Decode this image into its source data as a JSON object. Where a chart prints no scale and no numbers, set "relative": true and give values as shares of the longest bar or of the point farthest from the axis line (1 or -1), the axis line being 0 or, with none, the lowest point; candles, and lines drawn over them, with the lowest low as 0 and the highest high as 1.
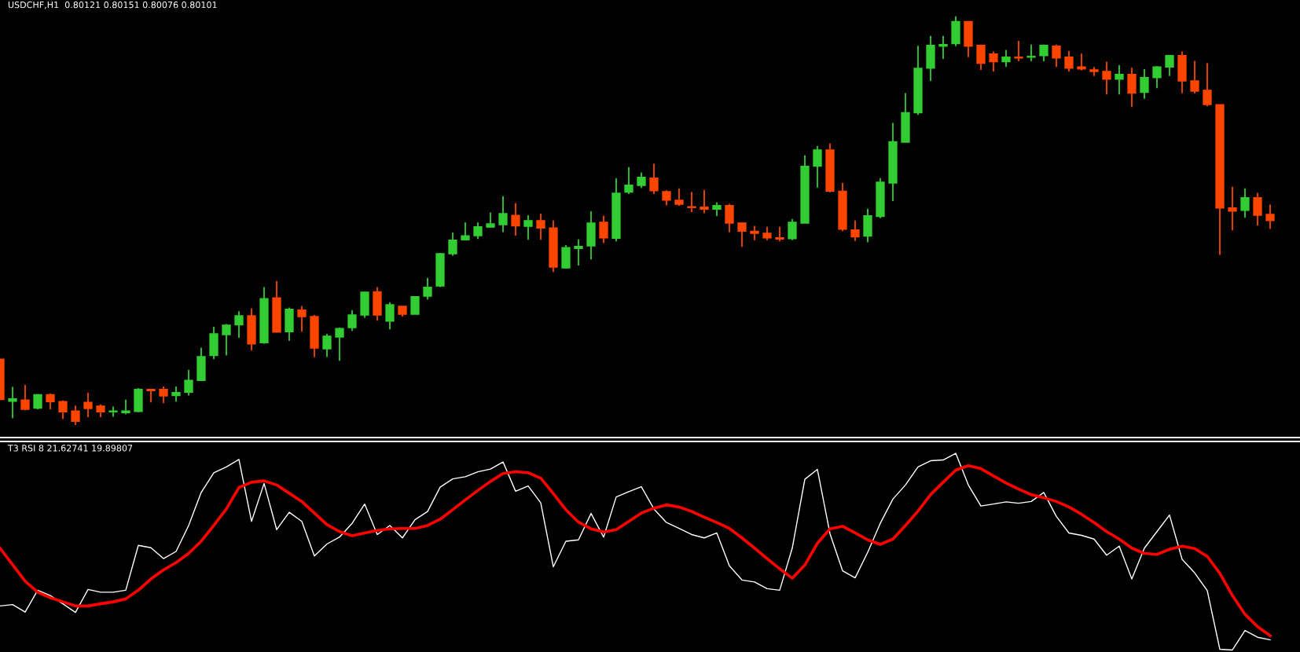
{
  "chart_data": [
    {
      "type": "candlestick",
      "title": "USDCHF,H1  0.80121 0.80151 0.80076 0.80101",
      "relative": true,
      "categories": [
        null,
        null,
        null,
        null,
        null,
        null,
        null,
        null,
        null,
        null,
        null,
        null,
        null,
        null,
        null,
        null,
        null,
        null,
        null,
        null,
        null,
        null,
        null,
        null,
        null,
        null,
        null,
        null,
        null,
        null,
        null,
        null,
        null,
        null,
        null,
        null,
        null,
        null,
        null,
        null,
        null,
        null,
        null,
        null,
        null,
        null,
        null,
        null,
        null,
        null,
        null,
        null,
        null,
        null,
        null,
        null,
        null,
        null,
        null,
        null,
        null,
        null,
        null,
        null,
        null,
        null,
        null,
        null,
        null,
        null,
        null,
        null,
        null,
        null,
        null,
        null,
        null,
        null,
        null,
        null,
        null,
        null,
        null,
        null,
        null,
        null,
        null,
        null,
        null,
        null,
        null,
        null,
        null,
        null,
        null,
        null,
        null,
        null,
        null,
        null,
        null,
        null
      ],
      "ohlc": [
        [
          0.161,
          0.161,
          0.062,
          0.062
        ],
        [
          0.058,
          0.093,
          0.016,
          0.064
        ],
        [
          0.061,
          0.098,
          0.036,
          0.038
        ],
        [
          0.041,
          0.075,
          0.038,
          0.074
        ],
        [
          0.074,
          0.077,
          0.038,
          0.057
        ],
        [
          0.057,
          0.06,
          0.014,
          0.032
        ],
        [
          0.034,
          0.047,
          0.0,
          0.009
        ],
        [
          0.055,
          0.079,
          0.019,
          0.04
        ],
        [
          0.046,
          0.05,
          0.019,
          0.032
        ],
        [
          0.032,
          0.045,
          0.02,
          0.033
        ],
        [
          0.03,
          0.062,
          0.026,
          0.034
        ],
        [
          0.033,
          0.09,
          0.031,
          0.087
        ],
        [
          0.087,
          0.088,
          0.055,
          0.084
        ],
        [
          0.087,
          0.094,
          0.053,
          0.071
        ],
        [
          0.072,
          0.094,
          0.057,
          0.079
        ],
        [
          0.08,
          0.135,
          0.072,
          0.109
        ],
        [
          0.109,
          0.189,
          0.109,
          0.167
        ],
        [
          0.17,
          0.24,
          0.161,
          0.223
        ],
        [
          0.221,
          0.247,
          0.17,
          0.244
        ],
        [
          0.245,
          0.278,
          0.213,
          0.267
        ],
        [
          0.267,
          0.285,
          0.182,
          0.198
        ],
        [
          0.201,
          0.337,
          0.199,
          0.309
        ],
        [
          0.311,
          0.352,
          0.227,
          0.227
        ],
        [
          0.228,
          0.287,
          0.206,
          0.283
        ],
        [
          0.281,
          0.291,
          0.228,
          0.265
        ],
        [
          0.265,
          0.269,
          0.166,
          0.188
        ],
        [
          0.186,
          0.223,
          0.166,
          0.217
        ],
        [
          0.215,
          0.238,
          0.157,
          0.236
        ],
        [
          0.238,
          0.281,
          0.23,
          0.269
        ],
        [
          0.269,
          0.326,
          0.262,
          0.325
        ],
        [
          0.326,
          0.337,
          0.255,
          0.269
        ],
        [
          0.254,
          0.3,
          0.234,
          0.294
        ],
        [
          0.29,
          0.29,
          0.265,
          0.271
        ],
        [
          0.271,
          0.315,
          0.271,
          0.314
        ],
        [
          0.315,
          0.36,
          0.307,
          0.337
        ],
        [
          0.34,
          0.421,
          0.337,
          0.419
        ],
        [
          0.419,
          0.471,
          0.414,
          0.452
        ],
        [
          0.453,
          0.496,
          0.452,
          0.463
        ],
        [
          0.463,
          0.496,
          0.455,
          0.485
        ],
        [
          0.484,
          0.52,
          0.484,
          0.492
        ],
        [
          0.49,
          0.56,
          0.472,
          0.517
        ],
        [
          0.513,
          0.543,
          0.463,
          0.487
        ],
        [
          0.486,
          0.513,
          0.453,
          0.5
        ],
        [
          0.5,
          0.517,
          0.453,
          0.482
        ],
        [
          0.482,
          0.5,
          0.374,
          0.386
        ],
        [
          0.384,
          0.44,
          0.383,
          0.434
        ],
        [
          0.432,
          0.454,
          0.39,
          0.437
        ],
        [
          0.438,
          0.523,
          0.405,
          0.494
        ],
        [
          0.496,
          0.512,
          0.445,
          0.458
        ],
        [
          0.457,
          0.604,
          0.449,
          0.567
        ],
        [
          0.57,
          0.631,
          0.565,
          0.587
        ],
        [
          0.586,
          0.618,
          0.58,
          0.606
        ],
        [
          0.604,
          0.639,
          0.565,
          0.573
        ],
        [
          0.571,
          0.574,
          0.537,
          0.55
        ],
        [
          0.55,
          0.579,
          0.536,
          0.54
        ],
        [
          0.533,
          0.57,
          0.521,
          0.532
        ],
        [
          0.533,
          0.575,
          0.518,
          0.528
        ],
        [
          0.528,
          0.545,
          0.511,
          0.537
        ],
        [
          0.537,
          0.541,
          0.472,
          0.494
        ],
        [
          0.494,
          0.496,
          0.436,
          0.474
        ],
        [
          0.474,
          0.487,
          0.452,
          0.469
        ],
        [
          0.469,
          0.485,
          0.452,
          0.458
        ],
        [
          0.458,
          0.485,
          0.449,
          0.455
        ],
        [
          0.456,
          0.504,
          0.452,
          0.496
        ],
        [
          0.494,
          0.66,
          0.494,
          0.633
        ],
        [
          0.633,
          0.683,
          0.581,
          0.673
        ],
        [
          0.673,
          0.689,
          0.569,
          0.572
        ],
        [
          0.572,
          0.592,
          0.474,
          0.479
        ],
        [
          0.477,
          0.5,
          0.45,
          0.46
        ],
        [
          0.462,
          0.529,
          0.447,
          0.512
        ],
        [
          0.51,
          0.604,
          0.506,
          0.594
        ],
        [
          0.592,
          0.739,
          0.548,
          0.693
        ],
        [
          0.692,
          0.812,
          0.692,
          0.764
        ],
        [
          0.764,
          0.928,
          0.759,
          0.873
        ],
        [
          0.873,
          0.952,
          0.842,
          0.929
        ],
        [
          0.927,
          0.952,
          0.896,
          0.931
        ],
        [
          0.933,
          1.0,
          0.927,
          0.987
        ],
        [
          0.987,
          0.987,
          0.9,
          0.927
        ],
        [
          0.929,
          0.931,
          0.869,
          0.885
        ],
        [
          0.908,
          0.914,
          0.865,
          0.889
        ],
        [
          0.889,
          0.918,
          0.876,
          0.9
        ],
        [
          0.9,
          0.94,
          0.89,
          0.898
        ],
        [
          0.9,
          0.931,
          0.89,
          0.902
        ],
        [
          0.904,
          0.931,
          0.89,
          0.929
        ],
        [
          0.927,
          0.931,
          0.876,
          0.898
        ],
        [
          0.9,
          0.915,
          0.865,
          0.873
        ],
        [
          0.876,
          0.909,
          0.868,
          0.871
        ],
        [
          0.869,
          0.876,
          0.854,
          0.865
        ],
        [
          0.865,
          0.889,
          0.809,
          0.846
        ],
        [
          0.846,
          0.881,
          0.809,
          0.858
        ],
        [
          0.858,
          0.874,
          0.778,
          0.812
        ],
        [
          0.814,
          0.871,
          0.798,
          0.85
        ],
        [
          0.85,
          0.878,
          0.824,
          0.876
        ],
        [
          0.876,
          0.904,
          0.854,
          0.904
        ],
        [
          0.904,
          0.914,
          0.812,
          0.842
        ],
        [
          0.842,
          0.891,
          0.811,
          0.817
        ],
        [
          0.819,
          0.885,
          0.78,
          0.784
        ],
        [
          0.784,
          0.784,
          0.416,
          0.531
        ],
        [
          0.531,
          0.583,
          0.476,
          0.523
        ],
        [
          0.525,
          0.579,
          0.507,
          0.556
        ],
        [
          0.556,
          0.568,
          0.488,
          0.513
        ],
        [
          0.515,
          0.539,
          0.48,
          0.5
        ]
      ],
      "colors": [
        "#ff4500",
        "#32cd32",
        "#ff4500",
        "#32cd32",
        "#ff4500",
        "#ff4500",
        "#ff4500",
        "#ff4500",
        "#ff4500",
        "#32cd32",
        "#32cd32",
        "#32cd32",
        "#ff4500",
        "#ff4500",
        "#32cd32",
        "#32cd32",
        "#32cd32",
        "#32cd32",
        "#32cd32",
        "#32cd32",
        "#ff4500",
        "#32cd32",
        "#ff4500",
        "#32cd32",
        "#ff4500",
        "#ff4500",
        "#32cd32",
        "#32cd32",
        "#32cd32",
        "#32cd32",
        "#ff4500",
        "#32cd32",
        "#ff4500",
        "#32cd32",
        "#32cd32",
        "#32cd32",
        "#32cd32",
        "#32cd32",
        "#32cd32",
        "#32cd32",
        "#32cd32",
        "#ff4500",
        "#32cd32",
        "#ff4500",
        "#ff4500",
        "#32cd32",
        "#32cd32",
        "#32cd32",
        "#ff4500",
        "#32cd32",
        "#32cd32",
        "#32cd32",
        "#ff4500",
        "#ff4500",
        "#ff4500",
        "#ff4500",
        "#ff4500",
        "#32cd32",
        "#ff4500",
        "#ff4500",
        "#ff4500",
        "#ff4500",
        "#ff4500",
        "#32cd32",
        "#32cd32",
        "#32cd32",
        "#ff4500",
        "#ff4500",
        "#ff4500",
        "#32cd32",
        "#32cd32",
        "#32cd32",
        "#32cd32",
        "#32cd32",
        "#32cd32",
        "#32cd32",
        "#32cd32",
        "#ff4500",
        "#ff4500",
        "#ff4500",
        "#32cd32",
        "#ff4500",
        "#32cd32",
        "#32cd32",
        "#ff4500",
        "#ff4500",
        "#ff4500",
        "#ff4500",
        "#ff4500",
        "#32cd32",
        "#ff4500",
        "#32cd32",
        "#32cd32",
        "#32cd32",
        "#ff4500",
        "#ff4500",
        "#ff4500",
        "#ff4500",
        "#ff4500",
        "#32cd32",
        "#ff4500",
        "#ff4500"
      ]
    },
    {
      "type": "line",
      "title": "T3 RSI 8 21.62741 19.89807",
      "relative": true,
      "marker": "none",
      "line_style": "solid",
      "categories": [
        null,
        null,
        null,
        null,
        null,
        null,
        null,
        null,
        null,
        null,
        null,
        null,
        null,
        null,
        null,
        null,
        null,
        null,
        null,
        null,
        null,
        null,
        null,
        null,
        null,
        null,
        null,
        null,
        null,
        null,
        null,
        null,
        null,
        null,
        null,
        null,
        null,
        null,
        null,
        null,
        null,
        null,
        null,
        null,
        null,
        null,
        null,
        null,
        null,
        null,
        null,
        null,
        null,
        null,
        null,
        null,
        null,
        null,
        null,
        null,
        null,
        null,
        null,
        null,
        null,
        null,
        null,
        null,
        null,
        null,
        null,
        null,
        null,
        null,
        null,
        null,
        null,
        null,
        null,
        null,
        null,
        null,
        null,
        null,
        null,
        null,
        null,
        null,
        null,
        null,
        null,
        null,
        null,
        null,
        null,
        null,
        null,
        null,
        null,
        null,
        null,
        null
      ],
      "series": [
        {
          "color": "#ffffff",
          "values": [
            0.224,
            0.231,
            0.193,
            0.304,
            0.277,
            0.235,
            0.191,
            0.308,
            0.294,
            0.294,
            0.304,
            0.532,
            0.52,
            0.465,
            0.501,
            0.633,
            0.801,
            0.901,
            0.931,
            0.969,
            0.654,
            0.847,
            0.612,
            0.7,
            0.654,
            0.478,
            0.539,
            0.574,
            0.644,
            0.742,
            0.587,
            0.633,
            0.57,
            0.662,
            0.704,
            0.828,
            0.87,
            0.881,
            0.906,
            0.92,
            0.956,
            0.807,
            0.834,
            0.748,
            0.423,
            0.553,
            0.56,
            0.694,
            0.574,
            0.778,
            0.805,
            0.83,
            0.717,
            0.648,
            0.618,
            0.587,
            0.57,
            0.595,
            0.428,
            0.356,
            0.346,
            0.312,
            0.304,
            0.518,
            0.868,
            0.918,
            0.591,
            0.403,
            0.367,
            0.497,
            0.644,
            0.767,
            0.839,
            0.931,
            0.962,
            0.966,
            1.0,
            0.839,
            0.732,
            0.742,
            0.753,
            0.746,
            0.755,
            0.801,
            0.679,
            0.595,
            0.583,
            0.564,
            0.482,
            0.528,
            0.361,
            0.518,
            0.602,
            0.686,
            0.461,
            0.392,
            0.302,
            0.004,
            0.0,
            0.099,
            0.065,
            0.052
          ]
        },
        {
          "color": "#ff0000",
          "values": [
            0.518,
            0.434,
            0.35,
            0.294,
            0.266,
            0.245,
            0.224,
            0.224,
            0.235,
            0.245,
            0.26,
            0.304,
            0.361,
            0.407,
            0.444,
            0.491,
            0.553,
            0.633,
            0.717,
            0.826,
            0.853,
            0.86,
            0.839,
            0.797,
            0.755,
            0.696,
            0.637,
            0.602,
            0.581,
            0.595,
            0.608,
            0.616,
            0.618,
            0.618,
            0.633,
            0.665,
            0.713,
            0.763,
            0.811,
            0.857,
            0.897,
            0.906,
            0.901,
            0.874,
            0.795,
            0.713,
            0.65,
            0.616,
            0.6,
            0.612,
            0.654,
            0.696,
            0.721,
            0.738,
            0.727,
            0.704,
            0.675,
            0.648,
            0.618,
            0.57,
            0.518,
            0.465,
            0.413,
            0.365,
            0.432,
            0.543,
            0.616,
            0.629,
            0.595,
            0.56,
            0.537,
            0.564,
            0.633,
            0.706,
            0.79,
            0.853,
            0.914,
            0.937,
            0.922,
            0.885,
            0.849,
            0.818,
            0.79,
            0.774,
            0.755,
            0.727,
            0.69,
            0.648,
            0.602,
            0.564,
            0.518,
            0.491,
            0.486,
            0.512,
            0.528,
            0.516,
            0.476,
            0.39,
            0.277,
            0.182,
            0.119,
            0.073
          ]
        }
      ]
    }
  ]
}
